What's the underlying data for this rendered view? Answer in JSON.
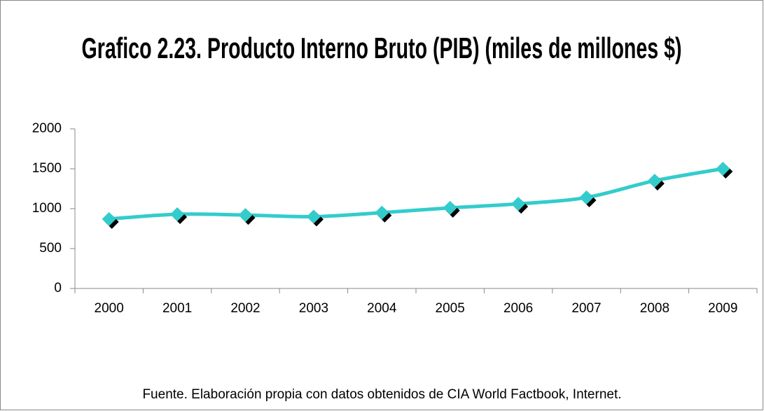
{
  "chart_data": {
    "type": "line",
    "title": "Grafico 2.23. Producto Interno Bruto (PIB) (miles de millones $)",
    "source": "Fuente. Elaboración propia con datos obtenidos de CIA World Factbook, Internet.",
    "categories": [
      "2000",
      "2001",
      "2002",
      "2003",
      "2004",
      "2005",
      "2006",
      "2007",
      "2008",
      "2009"
    ],
    "series": [
      {
        "color": "#33cccc",
        "values": [
          870,
          930,
          920,
          900,
          950,
          1010,
          1060,
          1140,
          1350,
          1500
        ]
      }
    ],
    "ylim": [
      0,
      2000
    ],
    "yticks": [
      0,
      500,
      1000,
      1500,
      2000
    ],
    "grid": false
  }
}
